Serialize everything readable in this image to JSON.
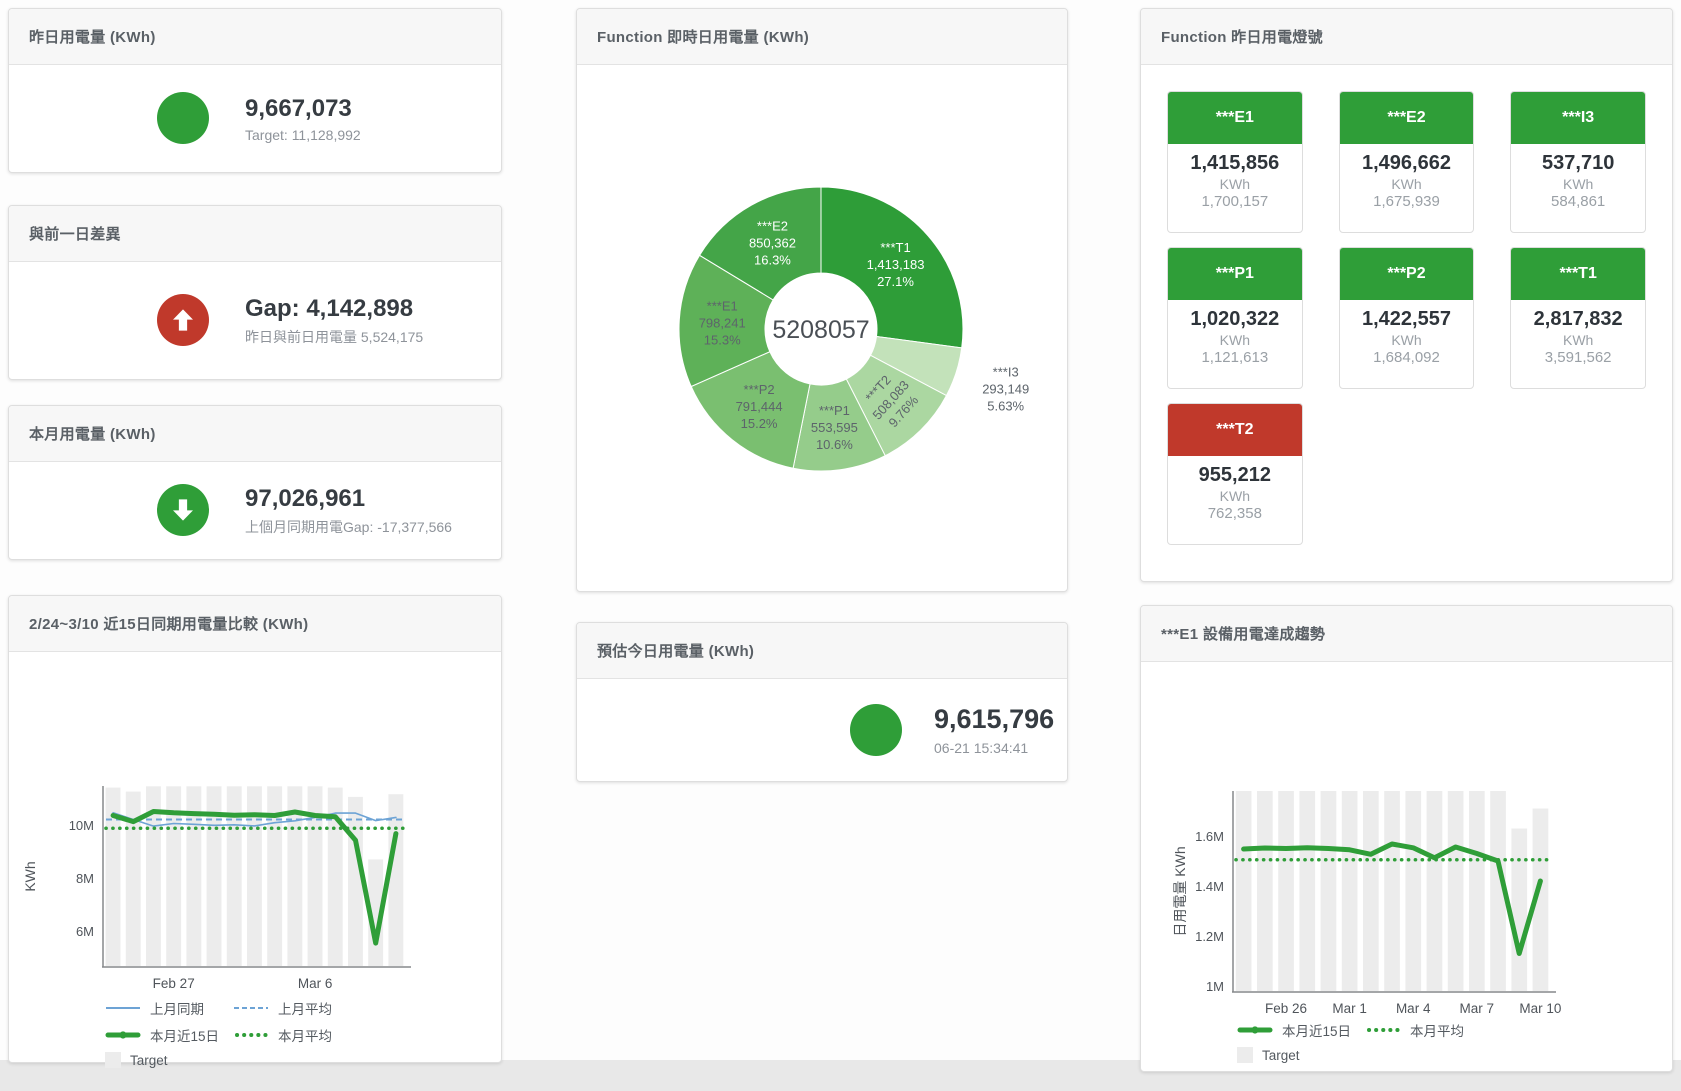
{
  "palette": {
    "green": "#2f9e38",
    "red": "#c0392b",
    "blue": "#6da3d5",
    "target_gray": "#ececec"
  },
  "cards": {
    "yesterday": {
      "title": "昨日用電量 (KWh)",
      "value": "9,667,073",
      "subtext": "Target: 11,128,992",
      "status_color": "#2f9e38"
    },
    "day_gap": {
      "title": "與前一日差異",
      "value": "Gap: 4,142,898",
      "subtext": "昨日與前日用電量 5,524,175",
      "status_color": "#c0392b",
      "direction": "up"
    },
    "month": {
      "title": "本月用電量 (KWh)",
      "value": "97,026,961",
      "subtext": "上個月同期用電Gap: -17,377,566",
      "status_color": "#2f9e38",
      "direction": "down"
    },
    "estimate": {
      "title": "預估今日用電量 (KWh)",
      "value": "9,615,796",
      "subtext": "06-21 15:34:41",
      "status_color": "#2f9e38"
    }
  },
  "tiles": {
    "title": "Function 昨日用電燈號",
    "unit": "KWh",
    "status_colors": {
      "green": "#2f9e38",
      "red": "#c0392b"
    },
    "items": [
      {
        "label": "***E1",
        "value": "1,415,856",
        "target": "1,700,157",
        "status": "green"
      },
      {
        "label": "***E2",
        "value": "1,496,662",
        "target": "1,675,939",
        "status": "green"
      },
      {
        "label": "***I3",
        "value": "537,710",
        "target": "584,861",
        "status": "green"
      },
      {
        "label": "***P1",
        "value": "1,020,322",
        "target": "1,121,613",
        "status": "green"
      },
      {
        "label": "***P2",
        "value": "1,422,557",
        "target": "1,684,092",
        "status": "green"
      },
      {
        "label": "***T1",
        "value": "2,817,832",
        "target": "3,591,562",
        "status": "green"
      },
      {
        "label": "***T2",
        "value": "955,212",
        "target": "762,358",
        "status": "red"
      }
    ]
  },
  "chart_data": [
    {
      "id": "donut",
      "type": "pie",
      "title": "Function 即時日用電量 (KWh)",
      "center_total": "5208057",
      "pcts": [
        27.1,
        5.63,
        9.76,
        10.6,
        15.2,
        15.3,
        16.3
      ],
      "segments": [
        {
          "label": "***T1",
          "value": "1,413,183",
          "pct": "27.1%",
          "color": "#2e9d38",
          "text_color": "#ffffff"
        },
        {
          "label": "***I3",
          "value": "293,149",
          "pct": "5.63%",
          "color": "#c3e2ba",
          "text_color": "#5d646b",
          "outside": true
        },
        {
          "label": "***T2",
          "value": "508,083",
          "pct": "9.76%",
          "color": "#abd7a1",
          "text_color": "#5d646b",
          "rotate": -48
        },
        {
          "label": "***P1",
          "value": "553,595",
          "pct": "10.6%",
          "color": "#95cc8b",
          "text_color": "#5d646b"
        },
        {
          "label": "***P2",
          "value": "791,444",
          "pct": "15.2%",
          "color": "#7abf70",
          "text_color": "#5d646b"
        },
        {
          "label": "***E1",
          "value": "798,241",
          "pct": "15.3%",
          "color": "#5eb158",
          "text_color": "#5d646b"
        },
        {
          "label": "***E2",
          "value": "850,362",
          "pct": "16.3%",
          "color": "#44a548",
          "text_color": "#ffffff"
        }
      ]
    },
    {
      "id": "compare",
      "type": "line+bar",
      "title": "2/24~3/10 近15日同期用電量比較 (KWh)",
      "ylabel": "KWh",
      "unit": "M",
      "y_range": [
        4.65,
        11.46
      ],
      "y_ticks": [
        {
          "value": 6,
          "label": "6M"
        },
        {
          "value": 8,
          "label": "8M"
        },
        {
          "value": 10,
          "label": "10M"
        }
      ],
      "x_ticks": [
        {
          "index": 3,
          "label": "Feb 27"
        },
        {
          "index": 10,
          "label": "Mar 6"
        }
      ],
      "target": {
        "name": "Target",
        "color": "#ececec",
        "values": [
          11.4,
          11.25,
          11.45,
          11.45,
          11.45,
          11.45,
          11.45,
          11.45,
          11.45,
          11.45,
          11.45,
          11.4,
          11.05,
          8.7,
          11.15
        ]
      },
      "series": [
        {
          "name": "上月同期",
          "type": "line",
          "color": "#6da3d5",
          "width": 1.6,
          "values": [
            10.45,
            10.2,
            9.95,
            10.05,
            10.02,
            9.98,
            10.0,
            9.96,
            10.08,
            10.15,
            10.28,
            10.44,
            10.44,
            10.16,
            10.28
          ]
        },
        {
          "name": "上月平均",
          "type": "avg-dash",
          "color": "#6da3d5",
          "value": 10.2
        },
        {
          "name": "本月近15日",
          "type": "line-thick",
          "color": "#2f9e38",
          "width": 5,
          "values": [
            10.35,
            10.12,
            10.5,
            10.45,
            10.42,
            10.4,
            10.36,
            10.38,
            10.35,
            10.48,
            10.35,
            10.3,
            9.42,
            5.55,
            9.67
          ]
        },
        {
          "name": "本月平均",
          "type": "avg-dot",
          "color": "#2f9e38",
          "value": 9.87
        }
      ]
    },
    {
      "id": "trend",
      "type": "line+bar",
      "title": "***E1 設備用電達成趨勢",
      "ylabel": "日用電量 KWh",
      "unit": "M",
      "y_range": [
        0.976,
        1.78
      ],
      "y_ticks": [
        {
          "value": 1,
          "label": "1M"
        },
        {
          "value": 1.2,
          "label": "1.2M"
        },
        {
          "value": 1.4,
          "label": "1.4M"
        },
        {
          "value": 1.6,
          "label": "1.6M"
        }
      ],
      "x_ticks": [
        {
          "index": 2,
          "label": "Feb 26"
        },
        {
          "index": 5,
          "label": "Mar 1"
        },
        {
          "index": 8,
          "label": "Mar 4"
        },
        {
          "index": 11,
          "label": "Mar 7"
        },
        {
          "index": 14,
          "label": "Mar 10"
        }
      ],
      "target": {
        "name": "Target",
        "color": "#ececec",
        "values": [
          1.78,
          1.78,
          1.78,
          1.78,
          1.78,
          1.78,
          1.78,
          1.78,
          1.78,
          1.78,
          1.78,
          1.78,
          1.78,
          1.63,
          1.71
        ]
      },
      "series": [
        {
          "name": "本月近15日",
          "type": "line-thick",
          "color": "#2f9e38",
          "width": 5,
          "values": [
            1.548,
            1.552,
            1.55,
            1.553,
            1.55,
            1.545,
            1.527,
            1.568,
            1.553,
            1.513,
            1.556,
            1.53,
            1.5,
            1.13,
            1.42
          ]
        },
        {
          "name": "本月平均",
          "type": "avg-dot",
          "color": "#2f9e38",
          "value": 1.505
        }
      ]
    }
  ]
}
